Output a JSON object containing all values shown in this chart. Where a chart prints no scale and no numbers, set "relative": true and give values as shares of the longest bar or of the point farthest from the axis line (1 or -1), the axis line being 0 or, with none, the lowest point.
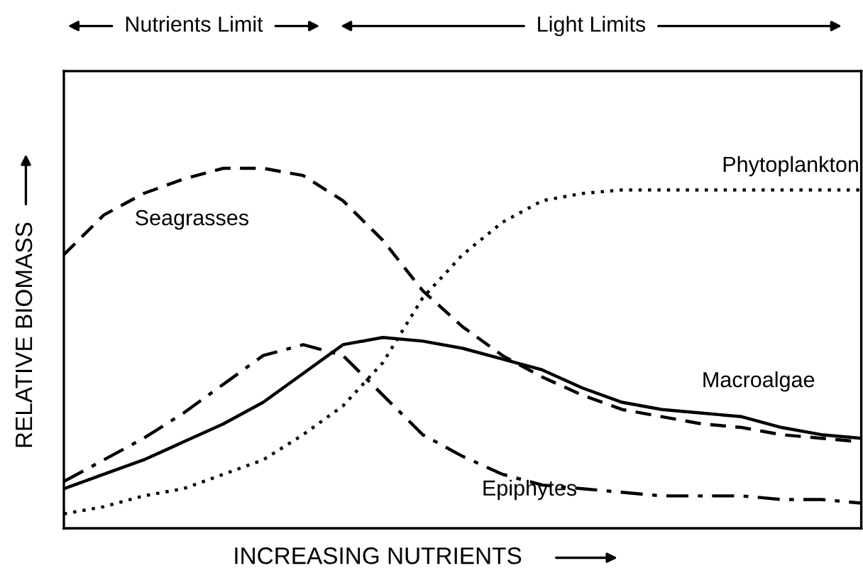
{
  "chart_data": {
    "type": "line",
    "relative": true,
    "legend": false,
    "grid": false,
    "marker": "none",
    "xlabel": "INCREASING NUTRIENTS",
    "ylabel": "RELATIVE BIOMASS",
    "annotations": [
      "Nutrients Limit",
      "Light Limits"
    ],
    "categories": [
      null,
      null,
      null,
      null,
      null,
      null,
      null,
      null,
      null,
      null,
      null,
      null,
      null,
      null,
      null,
      null,
      null,
      null,
      null,
      null,
      null
    ],
    "series": [
      {
        "name": "Seagrasses",
        "color": "#000000",
        "line_style": "dashed",
        "values": [
          0.76,
          0.87,
          0.93,
          0.97,
          1.0,
          1.0,
          0.98,
          0.91,
          0.8,
          0.66,
          0.56,
          0.48,
          0.42,
          0.37,
          0.33,
          0.31,
          0.29,
          0.28,
          0.26,
          0.25,
          0.24
        ]
      },
      {
        "name": "Phytoplankton",
        "color": "#000000",
        "line_style": "dotted",
        "values": [
          0.04,
          0.06,
          0.09,
          0.11,
          0.15,
          0.19,
          0.26,
          0.34,
          0.46,
          0.64,
          0.76,
          0.85,
          0.91,
          0.93,
          0.94,
          0.94,
          0.94,
          0.94,
          0.94,
          0.94,
          0.94
        ]
      },
      {
        "name": "Macroalgae",
        "color": "#000000",
        "line_style": "solid",
        "values": [
          0.11,
          0.15,
          0.19,
          0.24,
          0.29,
          0.35,
          0.43,
          0.51,
          0.53,
          0.52,
          0.5,
          0.47,
          0.44,
          0.39,
          0.35,
          0.33,
          0.32,
          0.31,
          0.28,
          0.26,
          0.25
        ]
      },
      {
        "name": "Epiphytes",
        "color": "#000000",
        "line_style": "dashdot",
        "values": [
          0.13,
          0.19,
          0.25,
          0.32,
          0.4,
          0.48,
          0.51,
          0.48,
          0.37,
          0.26,
          0.2,
          0.15,
          0.12,
          0.11,
          0.1,
          0.09,
          0.09,
          0.09,
          0.08,
          0.08,
          0.07
        ]
      }
    ]
  }
}
